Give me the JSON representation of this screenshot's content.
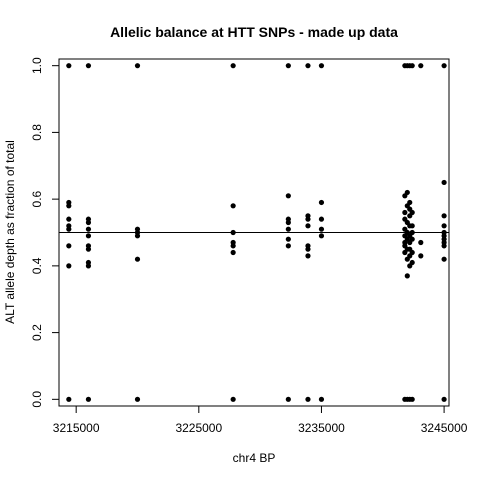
{
  "chart_data": {
    "type": "scatter",
    "title": "Allelic balance at HTT SNPs - made up data",
    "xlabel": "chr4 BP",
    "ylabel": "ALT allele depth as fraction of total",
    "xlim": [
      3213600,
      3245400
    ],
    "ylim": [
      -0.02,
      1.02
    ],
    "xticks": [
      3215000,
      3225000,
      3235000,
      3245000
    ],
    "xtick_labels": [
      "3215000",
      "3225000",
      "3235000",
      "3245000"
    ],
    "yticks": [
      0.0,
      0.2,
      0.4,
      0.6,
      0.8,
      1.0
    ],
    "ytick_labels": [
      "0.0",
      "0.2",
      "0.4",
      "0.6",
      "0.8",
      "1.0"
    ],
    "hline": 0.5,
    "grid": false,
    "series": [
      {
        "points": [
          [
            3214400,
            1.0
          ],
          [
            3214400,
            0.59
          ],
          [
            3214400,
            0.58
          ],
          [
            3214400,
            0.54
          ],
          [
            3214400,
            0.52
          ],
          [
            3214400,
            0.51
          ],
          [
            3214400,
            0.46
          ],
          [
            3214400,
            0.4
          ],
          [
            3214400,
            0.0
          ],
          [
            3216000,
            1.0
          ],
          [
            3216000,
            0.54
          ],
          [
            3216000,
            0.53
          ],
          [
            3216000,
            0.51
          ],
          [
            3216000,
            0.49
          ],
          [
            3216000,
            0.46
          ],
          [
            3216000,
            0.45
          ],
          [
            3216000,
            0.41
          ],
          [
            3216000,
            0.4
          ],
          [
            3216000,
            0.0
          ],
          [
            3220000,
            1.0
          ],
          [
            3220000,
            0.51
          ],
          [
            3220000,
            0.5
          ],
          [
            3220000,
            0.49
          ],
          [
            3220000,
            0.42
          ],
          [
            3220000,
            0.0
          ],
          [
            3227800,
            1.0
          ],
          [
            3227800,
            0.58
          ],
          [
            3227800,
            0.5
          ],
          [
            3227800,
            0.47
          ],
          [
            3227800,
            0.46
          ],
          [
            3227800,
            0.44
          ],
          [
            3227800,
            0.0
          ],
          [
            3232300,
            1.0
          ],
          [
            3232300,
            0.61
          ],
          [
            3232300,
            0.54
          ],
          [
            3232300,
            0.53
          ],
          [
            3232300,
            0.51
          ],
          [
            3232300,
            0.48
          ],
          [
            3232300,
            0.46
          ],
          [
            3232300,
            0.0
          ],
          [
            3233900,
            1.0
          ],
          [
            3233900,
            0.55
          ],
          [
            3233900,
            0.54
          ],
          [
            3233900,
            0.52
          ],
          [
            3233900,
            0.46
          ],
          [
            3233900,
            0.45
          ],
          [
            3233900,
            0.43
          ],
          [
            3233900,
            0.0
          ],
          [
            3235000,
            1.0
          ],
          [
            3235000,
            0.59
          ],
          [
            3235000,
            0.54
          ],
          [
            3235000,
            0.51
          ],
          [
            3235000,
            0.49
          ],
          [
            3235000,
            0.0
          ],
          [
            3241800,
            1.0
          ],
          [
            3241800,
            0.61
          ],
          [
            3241800,
            0.56
          ],
          [
            3241800,
            0.54
          ],
          [
            3241800,
            0.51
          ],
          [
            3241800,
            0.49
          ],
          [
            3241800,
            0.47
          ],
          [
            3241800,
            0.46
          ],
          [
            3241800,
            0.44
          ],
          [
            3241800,
            0.0
          ],
          [
            3242000,
            1.0
          ],
          [
            3242000,
            0.62
          ],
          [
            3242000,
            0.58
          ],
          [
            3242000,
            0.53
          ],
          [
            3242000,
            0.5
          ],
          [
            3242000,
            0.48
          ],
          [
            3242000,
            0.45
          ],
          [
            3242000,
            0.42
          ],
          [
            3242000,
            0.37
          ],
          [
            3242000,
            0.0
          ],
          [
            3242200,
            1.0
          ],
          [
            3242200,
            0.59
          ],
          [
            3242200,
            0.57
          ],
          [
            3242200,
            0.55
          ],
          [
            3242200,
            0.52
          ],
          [
            3242200,
            0.49
          ],
          [
            3242200,
            0.47
          ],
          [
            3242200,
            0.45
          ],
          [
            3242200,
            0.43
          ],
          [
            3242200,
            0.4
          ],
          [
            3242200,
            0.0
          ],
          [
            3242400,
            1.0
          ],
          [
            3242400,
            0.56
          ],
          [
            3242400,
            0.52
          ],
          [
            3242400,
            0.5
          ],
          [
            3242400,
            0.48
          ],
          [
            3242400,
            0.44
          ],
          [
            3242400,
            0.41
          ],
          [
            3242400,
            0.0
          ],
          [
            3243100,
            1.0
          ],
          [
            3243100,
            0.47
          ],
          [
            3243100,
            0.43
          ],
          [
            3245000,
            1.0
          ],
          [
            3245000,
            0.65
          ],
          [
            3245000,
            0.55
          ],
          [
            3245000,
            0.52
          ],
          [
            3245000,
            0.5
          ],
          [
            3245000,
            0.49
          ],
          [
            3245000,
            0.48
          ],
          [
            3245000,
            0.47
          ],
          [
            3245000,
            0.46
          ],
          [
            3245000,
            0.42
          ],
          [
            3245000,
            0.0
          ]
        ]
      }
    ]
  }
}
